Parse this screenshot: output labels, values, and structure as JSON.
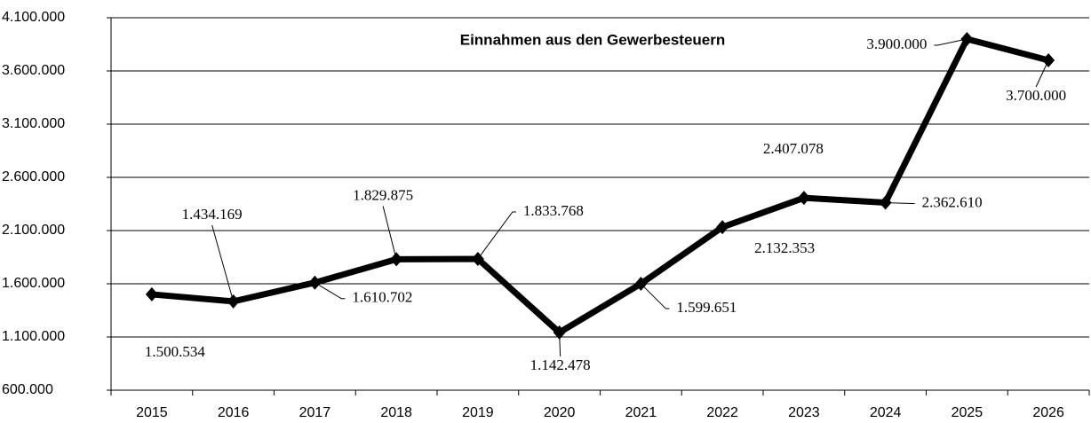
{
  "chart_data": {
    "type": "line",
    "title": "Einnahmen aus den Gewerbesteuern",
    "categories": [
      "2015",
      "2016",
      "2017",
      "2018",
      "2019",
      "2020",
      "2021",
      "2022",
      "2023",
      "2024",
      "2025",
      "2026"
    ],
    "values": [
      1500534,
      1434169,
      1610702,
      1829875,
      1833768,
      1142478,
      1599651,
      2132353,
      2407078,
      2362610,
      3900000,
      3700000
    ],
    "value_labels": [
      "1.500.534",
      "1.434.169",
      "1.610.702",
      "1.829.875",
      "1.833.768",
      "1.142.478",
      "1.599.651",
      "2.132.353",
      "2.407.078",
      "2.362.610",
      "3.900.000",
      "3.700.000"
    ],
    "color": "#000000",
    "ylim": [
      600000,
      4100000
    ],
    "yticks": [
      {
        "value": 600000,
        "label": "600.000"
      },
      {
        "value": 1100000,
        "label": "1.100.000"
      },
      {
        "value": 1600000,
        "label": "1.600.000"
      },
      {
        "value": 2100000,
        "label": "2.100.000"
      },
      {
        "value": 2600000,
        "label": "2.600.000"
      },
      {
        "value": 3100000,
        "label": "3.100.000"
      },
      {
        "value": 3600000,
        "label": "3.600.000"
      },
      {
        "value": 4100000,
        "label": "4.100.000"
      }
    ],
    "grid": true
  }
}
